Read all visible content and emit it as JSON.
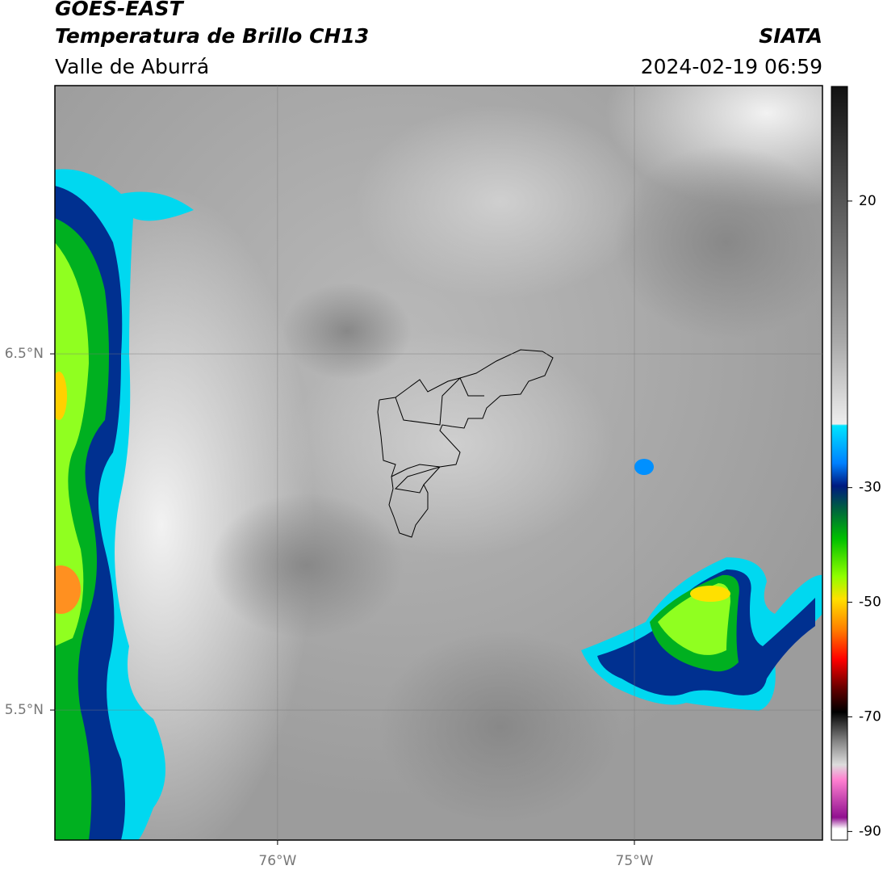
{
  "header": {
    "title": "GOES-EAST",
    "subtitle": "Temperatura de Brillo CH13",
    "region": "Valle de Aburrá",
    "source": "SIATA",
    "timestamp": "2024-02-19 06:59"
  },
  "map": {
    "xlim": [
      -76.624,
      -74.473
    ],
    "ylim": [
      5.135,
      7.253
    ],
    "xticks": [
      {
        "value": -76,
        "label": "76°W"
      },
      {
        "value": -75,
        "label": "75°W"
      }
    ],
    "yticks": [
      {
        "value": 6.5,
        "label": "6.5°N"
      },
      {
        "value": 5.5,
        "label": "5.5°N"
      }
    ]
  },
  "colorbar": {
    "lim": [
      -91.5,
      40
    ],
    "ticks": [
      20,
      -30,
      -50,
      -70,
      -90
    ]
  }
}
